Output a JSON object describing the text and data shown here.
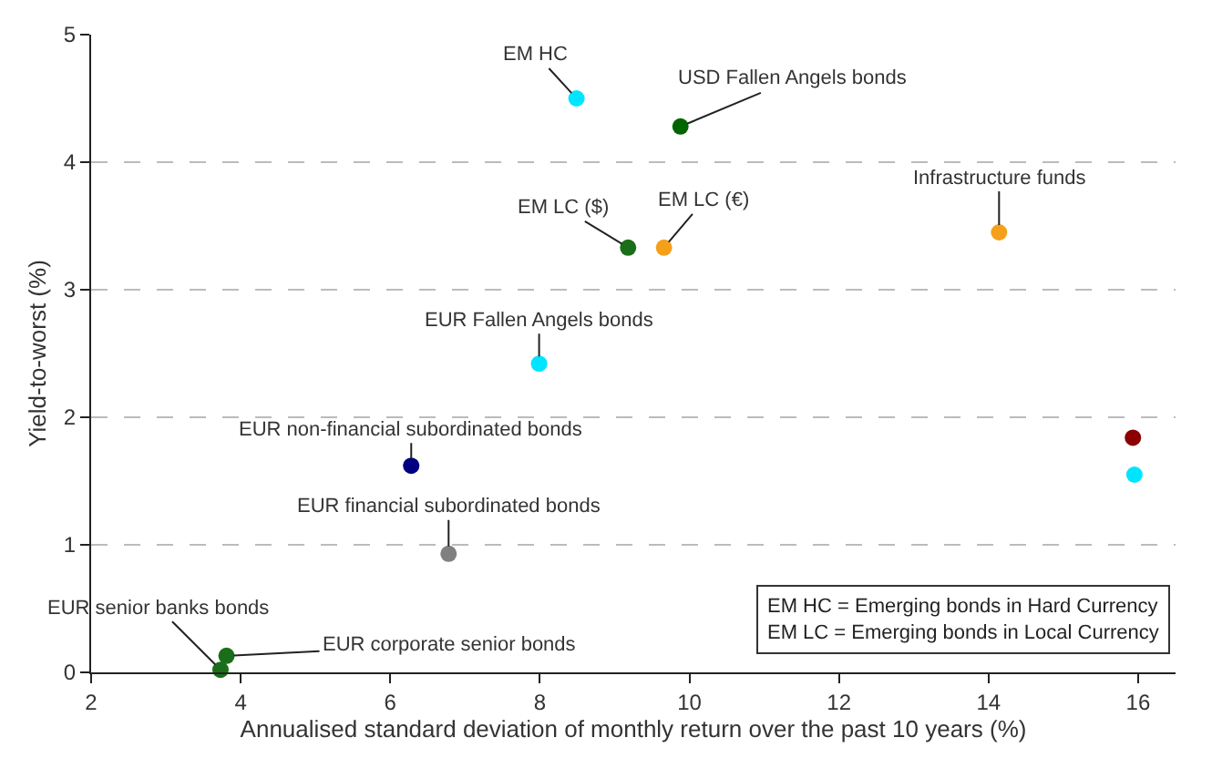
{
  "chart_data": {
    "type": "scatter",
    "xlabel": "Annualised standard deviation of monthly return over the past 10 years (%)",
    "ylabel": "Yield-to-worst (%)",
    "series": [
      {
        "x": [
          8.49,
          9.88,
          9.18,
          9.66,
          14.14,
          7.99,
          15.93,
          15.95,
          6.28,
          6.78,
          3.73,
          3.81
        ],
        "values": [
          4.5,
          4.28,
          3.33,
          3.33,
          3.45,
          2.42,
          1.84,
          1.55,
          1.62,
          0.93,
          0.02,
          0.13
        ],
        "colors": [
          "#00e5ff",
          "#006400",
          "#1a6e1a",
          "#f5a01a",
          "#f5a01a",
          "#00e5ff",
          "#8b0000",
          "#00e5ff",
          "#000080",
          "#808080",
          "#1a6e1a",
          "#1a6e1a"
        ]
      }
    ],
    "annotations": [
      {
        "text": "EM HC",
        "x": 8.49,
        "y": 4.5
      },
      {
        "text": "USD Fallen Angels bonds",
        "x": 9.88,
        "y": 4.28
      },
      {
        "text": "EM LC ($)",
        "x": 9.18,
        "y": 3.33
      },
      {
        "text": "EM LC (€)",
        "x": 9.66,
        "y": 3.33
      },
      {
        "text": "Infrastructure funds",
        "x": 14.14,
        "y": 3.45
      },
      {
        "text": "EUR Fallen Angels bonds",
        "x": 7.99,
        "y": 2.42
      },
      {
        "text": "EUR non-financial subordinated bonds",
        "x": 6.28,
        "y": 1.62
      },
      {
        "text": "EUR financial subordinated bonds",
        "x": 6.78,
        "y": 0.93
      },
      {
        "text": "EUR senior banks bonds",
        "x": 3.73,
        "y": 0.02
      },
      {
        "text": "EUR corporate senior bonds",
        "x": 3.81,
        "y": 0.13
      },
      "EM HC = Emerging bonds in Hard Currency\nEM LC = Emerging bonds in Local Currency"
    ],
    "xlim": [
      2,
      16.5
    ],
    "xticks": [
      2,
      4,
      6,
      8,
      10,
      12,
      14,
      16
    ],
    "ylim": [
      0,
      5
    ],
    "yticks": [
      0,
      1,
      2,
      3,
      4,
      5
    ],
    "grid": "y",
    "marker": "circle"
  }
}
